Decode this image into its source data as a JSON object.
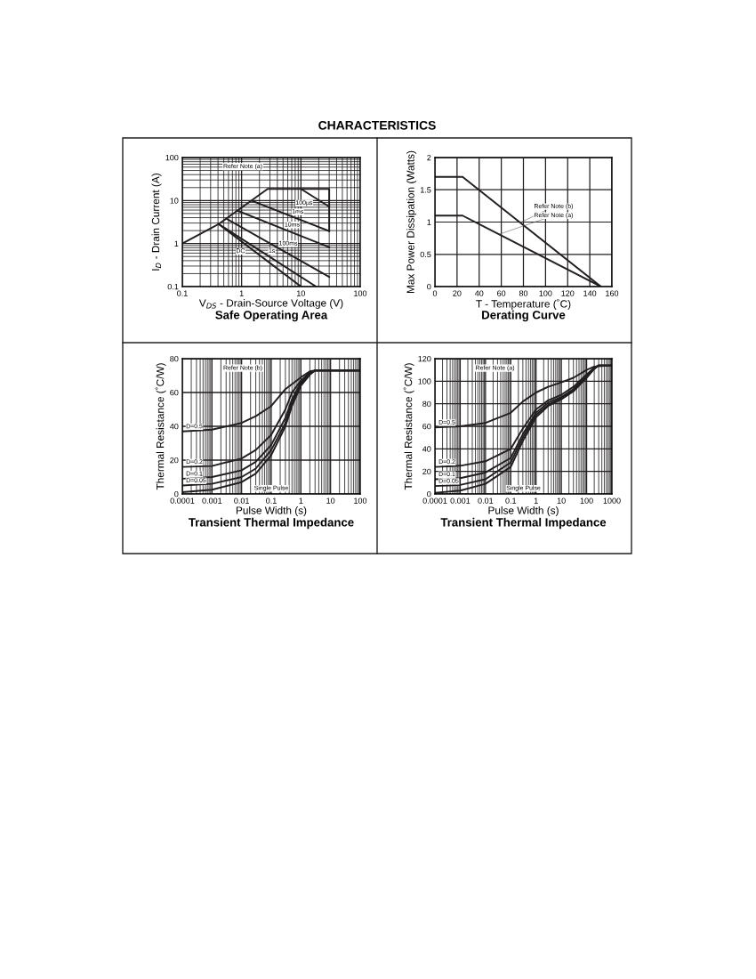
{
  "chart_data": [
    {
      "type": "line",
      "title": "Safe Operating Area",
      "xlabel": "V$_{DS}$ - Drain-Source Voltage (V)",
      "ylabel": "I$_{D}$ - Drain Current (A)",
      "log": "xy",
      "grid": true,
      "xlim": [
        0.1,
        100
      ],
      "ylim": [
        0.1,
        100
      ],
      "xticks": [
        0.1,
        1,
        10,
        100
      ],
      "yticks": [
        0.1,
        1,
        10,
        100
      ],
      "annotations": [
        "CHARACTERISTICS",
        "Refer Note (a)"
      ],
      "series": [
        {
          "color": "#231f20",
          "x": [
            0.1,
            0.41,
            2.75,
            10,
            30,
            30
          ],
          "values": [
            1,
            2.84,
            18.6,
            18.6,
            18.6,
            1.95
          ]
        },
        {
          "name": "DC",
          "color": "#231f20",
          "x": [
            0.41,
            10
          ],
          "values": [
            2.84,
            0.1
          ]
        },
        {
          "name": "1s",
          "color": "#231f20",
          "x": [
            0.41,
            18
          ],
          "values": [
            2.84,
            0.1
          ]
        },
        {
          "name": "100ms",
          "color": "#231f20",
          "x": [
            0.55,
            30
          ],
          "values": [
            3.8,
            0.167
          ]
        },
        {
          "name": "10ms",
          "color": "#231f20",
          "x": [
            0.85,
            30
          ],
          "values": [
            5.8,
            0.82
          ]
        },
        {
          "name": "1ms",
          "color": "#231f20",
          "x": [
            1.5,
            30
          ],
          "values": [
            9.8,
            1.95
          ]
        },
        {
          "name": "100µs",
          "color": "#231f20",
          "x": [
            10,
            30
          ],
          "values": [
            18.6,
            7.2
          ]
        }
      ]
    },
    {
      "type": "line",
      "title": "Derating Curve",
      "xlabel": "T - Temperature (˚C)",
      "ylabel": "Max Power Dissipation (Watts)",
      "grid": true,
      "xlim": [
        0,
        160
      ],
      "ylim": [
        0,
        2
      ],
      "xticks": [
        0,
        20,
        40,
        60,
        80,
        100,
        120,
        140,
        160
      ],
      "yticks": [
        0,
        0.5,
        1,
        1.5,
        2
      ],
      "annotations": [
        {
          "text": "Refer Note (b)",
          "x": 77,
          "y": 0.99
        },
        {
          "text": "Refer Note (a)",
          "x": 58,
          "y": 0.81
        }
      ],
      "series": [
        {
          "color": "#231f20",
          "x": [
            0,
            25,
            150
          ],
          "values": [
            1.7,
            1.7,
            0
          ]
        },
        {
          "color": "#231f20",
          "x": [
            0,
            25,
            150
          ],
          "values": [
            1.1,
            1.1,
            0
          ]
        }
      ]
    },
    {
      "type": "line",
      "title": "Transient Thermal Impedance",
      "xlabel": "Pulse Width (s)",
      "ylabel": "Thermal Resistance (˚C/W)",
      "log": "x",
      "grid": true,
      "xlim": [
        0.0001,
        100
      ],
      "ylim": [
        0,
        80
      ],
      "xticks": [
        0.0001,
        0.001,
        0.01,
        0.1,
        1,
        10,
        100
      ],
      "yticks": [
        0,
        20,
        40,
        60,
        80
      ],
      "annotations": [
        "Refer Note (b)"
      ],
      "series": [
        {
          "name": "D=0.5",
          "color": "#231f20",
          "x": [
            0.0001,
            0.001,
            0.01,
            0.03,
            0.1,
            0.3,
            1,
            2,
            3,
            100
          ],
          "values": [
            37,
            38,
            42,
            46,
            52,
            62,
            69,
            72.5,
            73,
            73
          ]
        },
        {
          "name": "D=0.2",
          "color": "#231f20",
          "x": [
            0.0001,
            0.001,
            0.01,
            0.03,
            0.1,
            0.3,
            0.5,
            1,
            2,
            3,
            100
          ],
          "values": [
            16,
            16.5,
            21,
            26,
            35,
            50,
            60,
            67,
            72,
            73,
            73
          ]
        },
        {
          "name": "D=0.1",
          "color": "#231f20",
          "x": [
            0.0001,
            0.001,
            0.01,
            0.03,
            0.1,
            0.3,
            0.5,
            1,
            2,
            3,
            100
          ],
          "values": [
            9,
            10,
            14,
            19,
            29,
            45,
            56,
            66,
            71.5,
            73,
            73
          ]
        },
        {
          "name": "D=0.05",
          "color": "#231f20",
          "x": [
            0.0001,
            0.001,
            0.01,
            0.03,
            0.1,
            0.3,
            0.5,
            1,
            2,
            3,
            100
          ],
          "values": [
            5,
            6,
            10,
            15,
            26,
            42,
            54,
            65,
            71,
            73,
            73
          ]
        },
        {
          "name": "Single Pulse",
          "color": "#231f20",
          "x": [
            0.0001,
            0.001,
            0.01,
            0.03,
            0.1,
            0.3,
            0.5,
            1,
            2,
            3,
            100
          ],
          "values": [
            1,
            2.5,
            7,
            12,
            23,
            40,
            52,
            64,
            70.5,
            73,
            73
          ]
        }
      ]
    },
    {
      "type": "line",
      "title": "Transient Thermal Impedance",
      "xlabel": "Pulse Width (s)",
      "ylabel": "Thermal Resistance (˚C/W)",
      "log": "x",
      "grid": true,
      "xlim": [
        0.0001,
        1000
      ],
      "ylim": [
        0,
        120
      ],
      "xticks": [
        0.0001,
        0.001,
        0.01,
        0.1,
        1,
        10,
        100,
        1000
      ],
      "yticks": [
        0,
        20,
        40,
        60,
        80,
        100,
        120
      ],
      "annotations": [
        "Refer Note (a)"
      ],
      "series": [
        {
          "name": "D=0.5",
          "color": "#231f20",
          "x": [
            0.0001,
            0.001,
            0.01,
            0.1,
            0.3,
            1,
            3,
            10,
            30,
            100,
            200,
            1000
          ],
          "values": [
            59,
            60,
            63,
            72,
            82,
            90,
            95,
            99,
            103,
            110,
            113,
            114
          ]
        },
        {
          "name": "D=0.2",
          "color": "#231f20",
          "x": [
            0.0001,
            0.001,
            0.01,
            0.1,
            0.3,
            1,
            3,
            10,
            30,
            100,
            200,
            300,
            1000
          ],
          "values": [
            24,
            25,
            29,
            40,
            58,
            75,
            83,
            88,
            95,
            106,
            112,
            114,
            114
          ]
        },
        {
          "name": "D=0.1",
          "color": "#231f20",
          "x": [
            0.0001,
            0.001,
            0.01,
            0.1,
            0.3,
            1,
            3,
            10,
            30,
            100,
            200,
            300,
            1000
          ],
          "values": [
            13,
            14,
            19,
            32,
            53,
            72,
            81,
            86,
            93,
            105,
            112,
            114,
            114
          ]
        },
        {
          "name": "D=0.05",
          "color": "#231f20",
          "x": [
            0.0001,
            0.001,
            0.01,
            0.1,
            0.3,
            1,
            3,
            10,
            30,
            100,
            200,
            300,
            1000
          ],
          "values": [
            7,
            8,
            13,
            28,
            50,
            70,
            79,
            85,
            92,
            104,
            111,
            114,
            114
          ]
        },
        {
          "name": "Single Pulse",
          "color": "#231f20",
          "x": [
            0.0001,
            0.001,
            0.01,
            0.1,
            0.3,
            1,
            3,
            10,
            30,
            100,
            200,
            300,
            1000
          ],
          "values": [
            1,
            3,
            9,
            24,
            47,
            68,
            78,
            84,
            91,
            103,
            111,
            114,
            114
          ]
        }
      ]
    }
  ]
}
